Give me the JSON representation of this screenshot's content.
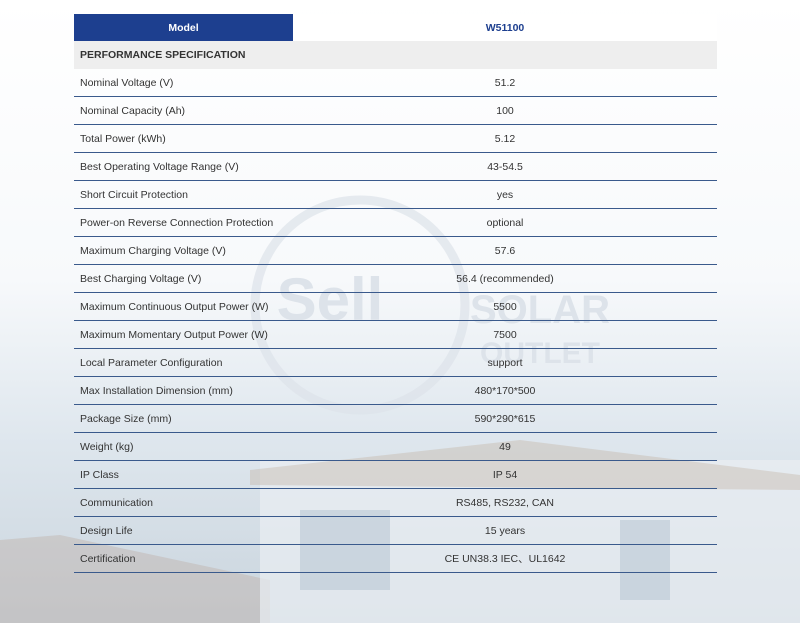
{
  "header": {
    "label": "Model",
    "model": "W51100"
  },
  "section": "PERFORMANCE SPECIFICATION",
  "table": {
    "rows": [
      [
        "Nominal Voltage (V)",
        "51.2"
      ],
      [
        "Nominal Capacity (Ah)",
        "100"
      ],
      [
        "Total Power (kWh)",
        "5.12"
      ],
      [
        "Best Operating Voltage Range (V)",
        "43-54.5"
      ],
      [
        "Short Circuit Protection",
        "yes"
      ],
      [
        "Power-on Reverse Connection Protection",
        "optional"
      ],
      [
        "Maximum Charging Voltage (V)",
        "57.6"
      ],
      [
        "Best Charging Voltage (V)",
        "56.4 (recommended)"
      ],
      [
        "Maximum Continuous Output Power (W)",
        "5500"
      ],
      [
        "Maximum Momentary Output Power (W)",
        "7500"
      ],
      [
        "Local Parameter Configuration",
        "support"
      ],
      [
        "Max Installation Dimension (mm)",
        "480*170*500"
      ],
      [
        "Package Size (mm)",
        "590*290*615"
      ],
      [
        "Weight (kg)",
        "49"
      ],
      [
        "IP Class",
        "IP 54"
      ],
      [
        "Communication",
        "RS485, RS232, CAN"
      ],
      [
        "Design Life",
        "15 years"
      ],
      [
        "Certification",
        "CE UN38.3 IEC、UL1642"
      ]
    ]
  },
  "watermark": {
    "brand": "Sell",
    "line1": "SOLAR",
    "line2": "OUTLET"
  }
}
